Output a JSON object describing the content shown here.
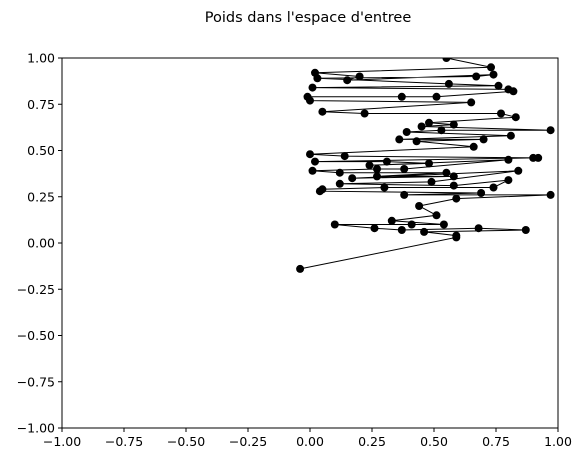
{
  "chart_data": {
    "type": "line",
    "title": "Poids dans l'espace d'entree",
    "xlabel": "",
    "ylabel": "",
    "xlim": [
      -1.0,
      1.0
    ],
    "ylim": [
      -1.0,
      1.0
    ],
    "grid": false,
    "line_color": "#000000",
    "marker_color": "#000000",
    "x_ticks": [
      "−1.00",
      "−0.75",
      "−0.50",
      "−0.25",
      "0.00",
      "0.25",
      "0.50",
      "0.75",
      "1.00"
    ],
    "y_ticks": [
      "−1.00",
      "−0.75",
      "−0.50",
      "−0.25",
      "0.00",
      "0.25",
      "0.50",
      "0.75",
      "1.00"
    ],
    "x_tick_values": [
      -1.0,
      -0.75,
      -0.5,
      -0.25,
      0.0,
      0.25,
      0.5,
      0.75,
      1.0
    ],
    "y_tick_values": [
      -1.0,
      -0.75,
      -0.5,
      -0.25,
      0.0,
      0.25,
      0.5,
      0.75,
      1.0
    ],
    "points": [
      [
        0.55,
        1.0
      ],
      [
        0.73,
        0.95
      ],
      [
        0.02,
        0.92
      ],
      [
        0.2,
        0.9
      ],
      [
        0.15,
        0.88
      ],
      [
        0.74,
        0.91
      ],
      [
        0.67,
        0.9
      ],
      [
        0.03,
        0.89
      ],
      [
        0.56,
        0.86
      ],
      [
        0.76,
        0.85
      ],
      [
        0.01,
        0.84
      ],
      [
        0.8,
        0.83
      ],
      [
        0.82,
        0.82
      ],
      [
        0.51,
        0.79
      ],
      [
        0.37,
        0.79
      ],
      [
        -0.01,
        0.79
      ],
      [
        0.0,
        0.77
      ],
      [
        0.65,
        0.76
      ],
      [
        0.05,
        0.71
      ],
      [
        0.22,
        0.7
      ],
      [
        0.77,
        0.7
      ],
      [
        0.83,
        0.68
      ],
      [
        0.48,
        0.65
      ],
      [
        0.58,
        0.64
      ],
      [
        0.45,
        0.63
      ],
      [
        0.97,
        0.61
      ],
      [
        0.53,
        0.61
      ],
      [
        0.39,
        0.6
      ],
      [
        0.81,
        0.58
      ],
      [
        0.36,
        0.56
      ],
      [
        0.7,
        0.56
      ],
      [
        0.43,
        0.55
      ],
      [
        0.66,
        0.52
      ],
      [
        0.0,
        0.48
      ],
      [
        0.14,
        0.47
      ],
      [
        0.92,
        0.46
      ],
      [
        0.9,
        0.46
      ],
      [
        0.02,
        0.44
      ],
      [
        0.31,
        0.44
      ],
      [
        0.48,
        0.43
      ],
      [
        0.24,
        0.42
      ],
      [
        0.8,
        0.45
      ],
      [
        0.38,
        0.4
      ],
      [
        0.27,
        0.4
      ],
      [
        0.01,
        0.39
      ],
      [
        0.12,
        0.38
      ],
      [
        0.55,
        0.38
      ],
      [
        0.27,
        0.36
      ],
      [
        0.58,
        0.36
      ],
      [
        0.17,
        0.35
      ],
      [
        0.84,
        0.39
      ],
      [
        0.49,
        0.33
      ],
      [
        0.12,
        0.32
      ],
      [
        0.58,
        0.31
      ],
      [
        0.8,
        0.34
      ],
      [
        0.74,
        0.3
      ],
      [
        0.3,
        0.3
      ],
      [
        0.05,
        0.29
      ],
      [
        0.04,
        0.28
      ],
      [
        0.69,
        0.27
      ],
      [
        0.38,
        0.26
      ],
      [
        0.97,
        0.26
      ],
      [
        0.59,
        0.24
      ],
      [
        0.44,
        0.2
      ],
      [
        0.51,
        0.15
      ],
      [
        0.33,
        0.12
      ],
      [
        0.54,
        0.1
      ],
      [
        0.41,
        0.1
      ],
      [
        0.1,
        0.1
      ],
      [
        0.26,
        0.08
      ],
      [
        0.37,
        0.07
      ],
      [
        0.68,
        0.08
      ],
      [
        0.87,
        0.07
      ],
      [
        0.46,
        0.06
      ],
      [
        0.59,
        0.04
      ],
      [
        0.59,
        0.03
      ],
      [
        -0.04,
        -0.14
      ]
    ]
  }
}
